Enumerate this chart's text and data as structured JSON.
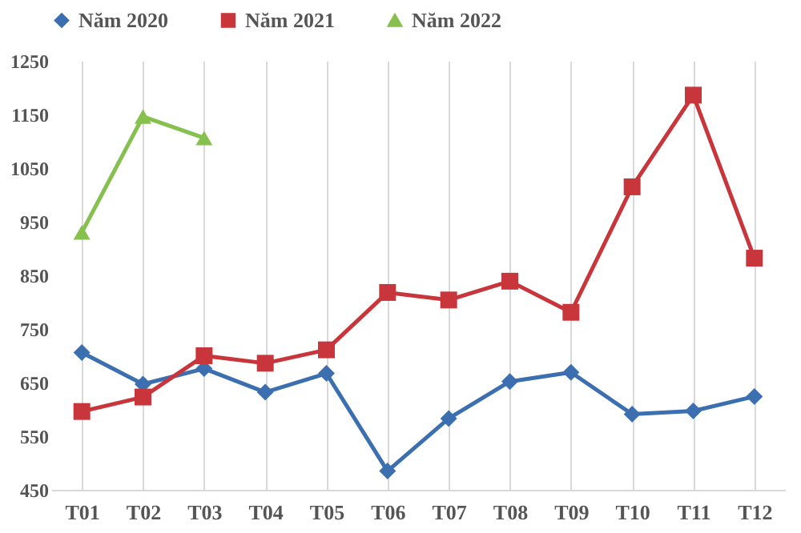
{
  "chart_data": {
    "type": "line",
    "categories": [
      "T01",
      "T02",
      "T03",
      "T04",
      "T05",
      "T06",
      "T07",
      "T08",
      "T09",
      "T10",
      "T11",
      "T12"
    ],
    "series": [
      {
        "name": "Năm 2020",
        "color": "#3c6fb0",
        "marker": "diamond",
        "values": [
          706,
          647,
          676,
          632,
          667,
          485,
          583,
          652,
          669,
          591,
          597,
          624
        ]
      },
      {
        "name": "Năm 2021",
        "color": "#c8353b",
        "marker": "square",
        "values": [
          596,
          623,
          700,
          686,
          711,
          818,
          804,
          839,
          781,
          1015,
          1186,
          882
        ]
      },
      {
        "name": "Năm 2022",
        "color": "#86c04f",
        "marker": "triangle",
        "values": [
          930,
          1146,
          1106,
          null,
          null,
          null,
          null,
          null,
          null,
          null,
          null,
          null
        ]
      }
    ],
    "ylim": [
      450,
      1250
    ],
    "yticks": [
      450,
      550,
      650,
      750,
      850,
      950,
      1050,
      1150,
      1250
    ],
    "grid": "x",
    "legend": "top"
  }
}
